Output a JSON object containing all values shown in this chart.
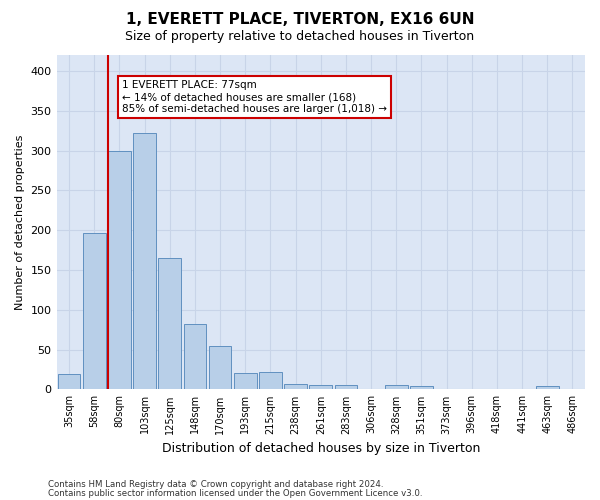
{
  "title": "1, EVERETT PLACE, TIVERTON, EX16 6UN",
  "subtitle": "Size of property relative to detached houses in Tiverton",
  "xlabel": "Distribution of detached houses by size in Tiverton",
  "ylabel": "Number of detached properties",
  "footer_line1": "Contains HM Land Registry data © Crown copyright and database right 2024.",
  "footer_line2": "Contains public sector information licensed under the Open Government Licence v3.0.",
  "bar_labels": [
    "35sqm",
    "58sqm",
    "80sqm",
    "103sqm",
    "125sqm",
    "148sqm",
    "170sqm",
    "193sqm",
    "215sqm",
    "238sqm",
    "261sqm",
    "283sqm",
    "306sqm",
    "328sqm",
    "351sqm",
    "373sqm",
    "396sqm",
    "418sqm",
    "441sqm",
    "463sqm",
    "486sqm"
  ],
  "bar_values": [
    20,
    197,
    300,
    322,
    165,
    82,
    55,
    21,
    22,
    7,
    6,
    5,
    0,
    5,
    4,
    0,
    0,
    0,
    0,
    4,
    0
  ],
  "bar_color": "#b8cfe8",
  "bar_edge_color": "#6090c0",
  "grid_color": "#c8d4e8",
  "background_color": "#dce6f5",
  "vline_color": "#cc0000",
  "annotation_text": "1 EVERETT PLACE: 77sqm\n← 14% of detached houses are smaller (168)\n85% of semi-detached houses are larger (1,018) →",
  "annotation_box_facecolor": "#ffffff",
  "annotation_box_edgecolor": "#cc0000",
  "ylim": [
    0,
    420
  ],
  "yticks": [
    0,
    50,
    100,
    150,
    200,
    250,
    300,
    350,
    400
  ],
  "title_fontsize": 11,
  "subtitle_fontsize": 9,
  "ylabel_fontsize": 8,
  "xlabel_fontsize": 9
}
